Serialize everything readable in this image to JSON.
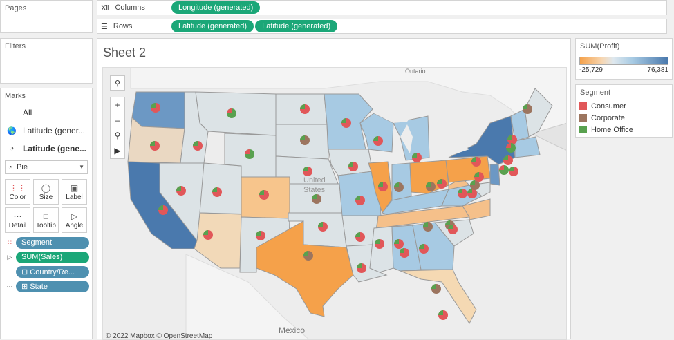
{
  "left": {
    "pages_title": "Pages",
    "filters_title": "Filters",
    "marks_title": "Marks",
    "marks_all": "All",
    "marks_layer1": "Latitude (gener...",
    "marks_layer2": "Latitude (gene...",
    "mark_type": "Pie",
    "buttons": [
      "Color",
      "Size",
      "Label",
      "Detail",
      "Tooltip",
      "Angle"
    ],
    "pills": [
      {
        "label": "Segment",
        "icon": "color-dots-icon",
        "color": "blue"
      },
      {
        "label": "SUM(Sales)",
        "icon": "angle-icon",
        "color": "green"
      },
      {
        "label": "⊟ Country/Re...",
        "icon": "detail-icon",
        "color": "blue"
      },
      {
        "label": "⊞ State",
        "icon": "detail-icon",
        "color": "blue"
      }
    ]
  },
  "shelves": {
    "columns_label": "Columns",
    "rows_label": "Rows",
    "columns": [
      "Longitude (generated)"
    ],
    "rows": [
      "Latitude (generated)",
      "Latitude (generated)"
    ]
  },
  "sheet": {
    "title": "Sheet 2",
    "map_labels": {
      "mexico": "Mexico",
      "ontario": "Ontario",
      "united_states": "United States"
    },
    "attribution": "© 2022 Mapbox © OpenStreetMap"
  },
  "legends": {
    "profit_title": "SUM(Profit)",
    "profit_min": "-25,729",
    "profit_max": "76,381",
    "segment_title": "Segment",
    "segments": [
      {
        "label": "Consumer",
        "color": "#e15759"
      },
      {
        "label": "Corporate",
        "color": "#9c755f"
      },
      {
        "label": "Home Office",
        "color": "#59a14f"
      }
    ]
  },
  "colors": {
    "consumer": "#e15759",
    "corporate": "#9c755f",
    "home_office": "#59a14f",
    "pill_green": "#1ba778",
    "pill_blue": "#4e90b0",
    "profit_low": "#f5a14a",
    "profit_high": "#4a79ad"
  }
}
